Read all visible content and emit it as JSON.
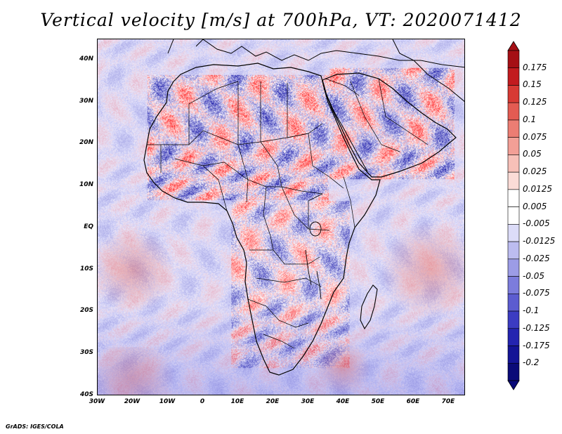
{
  "title": "Vertical velocity [m/s] at 700hPa, VT: 2020071412",
  "credit": "GrADS: IGES/COLA",
  "lat_ticks": [
    "40N",
    "30N",
    "20N",
    "10N",
    "EQ",
    "10S",
    "20S",
    "30S",
    "40S"
  ],
  "lon_ticks": [
    "30W",
    "20W",
    "10W",
    "0",
    "10E",
    "20E",
    "30E",
    "40E",
    "50E",
    "60E",
    "70E"
  ],
  "colorbar": {
    "labels": [
      "0.175",
      "0.15",
      "0.125",
      "0.1",
      "0.075",
      "0.05",
      "0.025",
      "0.0125",
      "0.005",
      "-0.005",
      "-0.0125",
      "-0.025",
      "-0.05",
      "-0.075",
      "-0.1",
      "-0.125",
      "-0.175",
      "-0.2"
    ],
    "colors": [
      "#a50f15",
      "#c21b1f",
      "#d73a34",
      "#e35b52",
      "#ec7d73",
      "#f29f96",
      "#f7c0b8",
      "#fbdcd7",
      "#ffffff",
      "#ffffff",
      "#dcdcf8",
      "#bcbcf0",
      "#9c9ce6",
      "#7c7cdc",
      "#5c5cd0",
      "#3c3cc2",
      "#2424b0",
      "#141496",
      "#0a0a78"
    ]
  }
}
